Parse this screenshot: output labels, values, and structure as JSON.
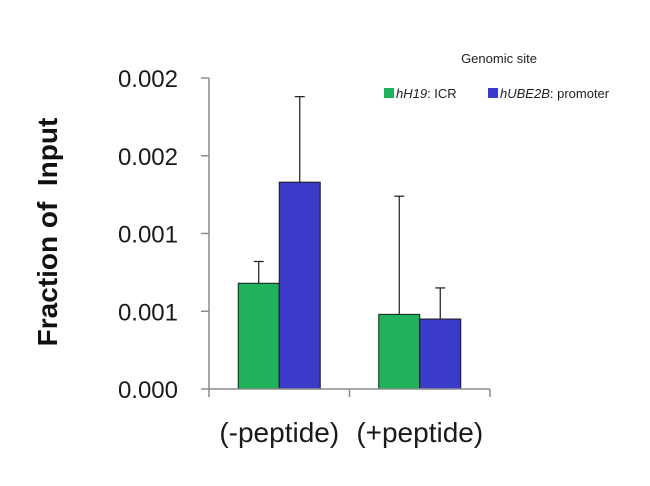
{
  "chart_data": {
    "type": "bar",
    "title": "",
    "xlabel": "",
    "ylabel": "Fraction of  Input",
    "categories": [
      "(-peptide)",
      "(+peptide)"
    ],
    "y_tick_labels": [
      "0.000",
      "0.001",
      "0.001",
      "0.002",
      "0.002"
    ],
    "ylim": [
      0,
      0.002
    ],
    "legend": {
      "title": "Genomic site",
      "placement": "top-right"
    },
    "series": [
      {
        "name_italic": "hH19",
        "name_rest": ": ICR",
        "color": "#1fb25a",
        "values": [
          0.00068,
          0.00048
        ],
        "errors": [
          0.00014,
          0.00076
        ]
      },
      {
        "name_italic": "hUBE2B",
        "name_rest": ": promoter",
        "color": "#3a3bc8",
        "values": [
          0.00133,
          0.00045
        ],
        "errors": [
          0.00055,
          0.0002
        ]
      }
    ],
    "grid": false
  }
}
